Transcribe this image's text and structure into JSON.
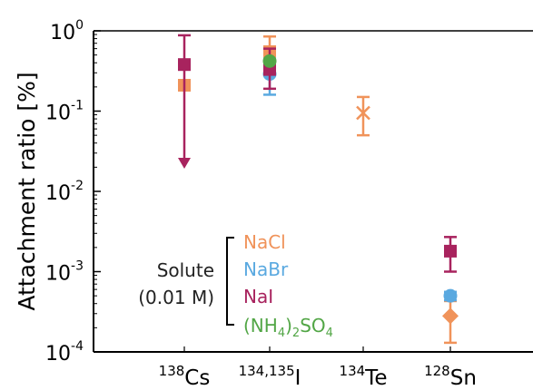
{
  "chart_data": {
    "type": "scatter",
    "title": "",
    "ylabel": "Attachment ratio [%]",
    "xlabel": "",
    "yscale": "log",
    "ylim": [
      0.0001,
      1
    ],
    "yticks": [
      {
        "base": "10",
        "exp": "0",
        "value": 1
      },
      {
        "base": "10",
        "exp": "-1",
        "value": 0.1
      },
      {
        "base": "10",
        "exp": "-2",
        "value": 0.01
      },
      {
        "base": "10",
        "exp": "-3",
        "value": 0.001
      },
      {
        "base": "10",
        "exp": "-4",
        "value": 0.0001
      }
    ],
    "categories": [
      {
        "sup": "138",
        "sym": "Cs"
      },
      {
        "sup": "134,135",
        "sym": "I"
      },
      {
        "sup": "134",
        "sym": "Te"
      },
      {
        "sup": "128",
        "sym": "Sn"
      }
    ],
    "legend": {
      "title_line1": "Solute",
      "title_line2": "(0.01 M)",
      "position": "center-left"
    },
    "series": [
      {
        "name": "NaCl",
        "color": "#f0935a",
        "marker": "square",
        "points": [
          {
            "cat": 0,
            "y": 0.21
          },
          {
            "cat": 1,
            "y": 0.55,
            "err_lo": 0.35,
            "err_hi": 0.85
          }
        ]
      },
      {
        "name": "NaBr",
        "color": "#5aa9e0",
        "marker": "circle",
        "points": [
          {
            "cat": 1,
            "y": 0.29,
            "err_lo": 0.16,
            "err_hi": 0.45
          },
          {
            "cat": 3,
            "y": 0.0005,
            "err_lo": 0.00044,
            "err_hi": 0.00056
          }
        ]
      },
      {
        "name": "NaI",
        "color": "#a8235e",
        "marker": "square",
        "points": [
          {
            "cat": 0,
            "y": 0.38,
            "err_lo": 0.09,
            "err_hi": 0.88,
            "upper_limit_arrow": true
          },
          {
            "cat": 1,
            "y": 0.33,
            "err_lo": 0.19,
            "err_hi": 0.6
          },
          {
            "cat": 3,
            "y": 0.0018,
            "err_lo": 0.001,
            "err_hi": 0.0027
          }
        ]
      },
      {
        "name_parts": [
          "(NH",
          "4",
          ")",
          "2",
          "SO",
          "4"
        ],
        "color": "#52a646",
        "marker": "circle",
        "points": [
          {
            "cat": 1,
            "y": 0.42
          }
        ]
      },
      {
        "name": "NaCl Te",
        "color": "#f0935a",
        "marker": "x",
        "points": [
          {
            "cat": 2,
            "y": 0.095,
            "err_lo": 0.05,
            "err_hi": 0.15
          }
        ]
      },
      {
        "name": "NaCl Sn",
        "color": "#f0935a",
        "marker": "diamond",
        "points": [
          {
            "cat": 3,
            "y": 0.00028,
            "err_lo": 0.00013,
            "err_hi": 0.00043
          }
        ]
      }
    ]
  }
}
